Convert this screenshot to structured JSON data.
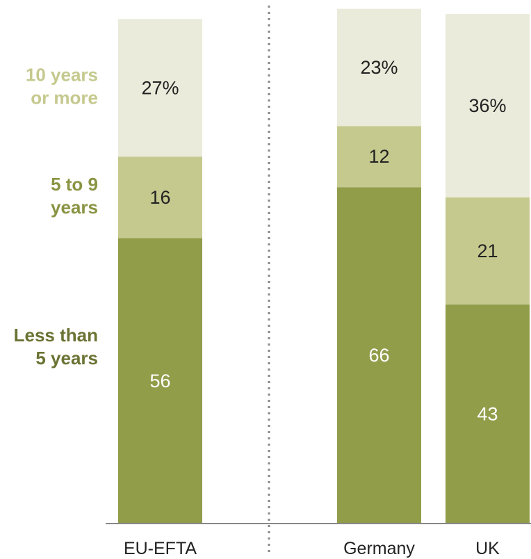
{
  "chart_data": {
    "type": "bar",
    "stacked": true,
    "categories": [
      "EU-EFTA",
      "Germany",
      "UK"
    ],
    "series": [
      {
        "name": "Less than 5 years",
        "values": [
          56,
          66,
          43
        ],
        "labels": [
          "56",
          "66",
          "43"
        ],
        "color": "#929d4a",
        "text_color": "#ffffff",
        "legend_lines": [
          "Less than",
          "5 years"
        ],
        "legend_color": "#6b7333"
      },
      {
        "name": "5 to 9 years",
        "values": [
          16,
          12,
          21
        ],
        "labels": [
          "16",
          "12",
          "21"
        ],
        "color": "#c5c98e",
        "text_color": "#222222",
        "legend_lines": [
          "5 to 9",
          "years"
        ],
        "legend_color": "#8a9443"
      },
      {
        "name": "10 years or more",
        "values": [
          27,
          23,
          36
        ],
        "labels": [
          "27%",
          "23%",
          "36%"
        ],
        "color": "#ebebdb",
        "text_color": "#222222",
        "legend_lines": [
          "10 years",
          "or more"
        ],
        "legend_color": "#c5c98e"
      }
    ],
    "ylim": [
      0,
      100
    ],
    "separator_after_index": 0,
    "legend_position": "left",
    "grid": false
  }
}
